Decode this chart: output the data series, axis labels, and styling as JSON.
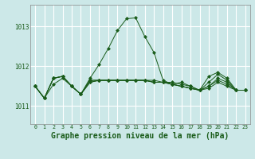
{
  "background_color": "#cce8e8",
  "grid_color": "#ffffff",
  "line_color": "#1a5c1a",
  "marker_color": "#1a5c1a",
  "xlabel": "Graphe pression niveau de la mer (hPa)",
  "xlabel_fontsize": 7,
  "yticks": [
    1011,
    1012,
    1013
  ],
  "ylim": [
    1010.55,
    1013.55
  ],
  "xlim": [
    -0.5,
    23.5
  ],
  "xticks": [
    0,
    1,
    2,
    3,
    4,
    5,
    6,
    7,
    8,
    9,
    10,
    11,
    12,
    13,
    14,
    15,
    16,
    17,
    18,
    19,
    20,
    21,
    22,
    23
  ],
  "series": [
    [
      1011.5,
      1011.2,
      1011.55,
      1011.7,
      1011.5,
      1011.3,
      1011.7,
      1012.05,
      1012.45,
      1012.9,
      1013.2,
      1013.22,
      1012.75,
      1012.35,
      1011.65,
      1011.55,
      1011.6,
      1011.5,
      1011.4,
      1011.5,
      1011.7,
      1011.6,
      1011.4,
      1011.4
    ],
    [
      1011.5,
      1011.2,
      1011.7,
      1011.75,
      1011.5,
      1011.3,
      1011.6,
      1011.65,
      1011.65,
      1011.65,
      1011.65,
      1011.65,
      1011.65,
      1011.65,
      1011.6,
      1011.6,
      1011.55,
      1011.5,
      1011.4,
      1011.5,
      1011.65,
      1011.55,
      1011.4,
      1011.4
    ],
    [
      1011.5,
      1011.2,
      1011.7,
      1011.75,
      1011.5,
      1011.3,
      1011.6,
      1011.65,
      1011.65,
      1011.65,
      1011.65,
      1011.65,
      1011.65,
      1011.6,
      1011.6,
      1011.55,
      1011.5,
      1011.45,
      1011.4,
      1011.45,
      1011.6,
      1011.5,
      1011.4,
      1011.4
    ],
    [
      1011.5,
      1011.2,
      1011.7,
      1011.75,
      1011.5,
      1011.3,
      1011.65,
      1011.65,
      1011.65,
      1011.65,
      1011.65,
      1011.65,
      1011.65,
      1011.6,
      1011.6,
      1011.55,
      1011.5,
      1011.45,
      1011.4,
      1011.6,
      1011.8,
      1011.65,
      1011.4,
      1011.4
    ],
    [
      1011.5,
      1011.2,
      1011.7,
      1011.75,
      1011.5,
      1011.3,
      1011.65,
      1011.65,
      1011.65,
      1011.65,
      1011.65,
      1011.65,
      1011.65,
      1011.6,
      1011.6,
      1011.55,
      1011.5,
      1011.45,
      1011.4,
      1011.75,
      1011.85,
      1011.7,
      1011.4,
      1011.4
    ]
  ]
}
